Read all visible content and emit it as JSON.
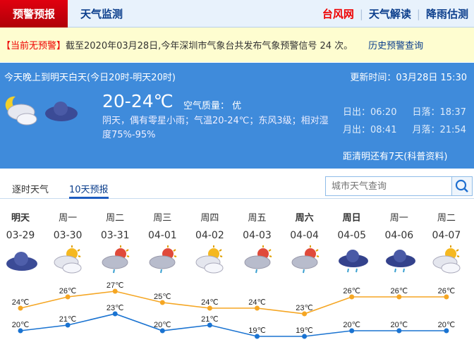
{
  "nav": {
    "active_tab": "预警预报",
    "tab2": "天气监测",
    "links": [
      "台风网",
      "天气解读",
      "降雨估测"
    ]
  },
  "warning": {
    "tag": "【当前无预警】",
    "text": "截至2020年03月28日,今年深圳市气象台共发布气象预警信号 24 次。",
    "history_link": "历史预警查询"
  },
  "today": {
    "period": "今天晚上到明天白天(今日20时-明天20时)",
    "update": "更新时间：03月28日 15:30",
    "temp": "20-24℃",
    "air_quality": "空气质量： 优",
    "desc": "阴天，偶有零星小雨；气温20-24℃；东风3级；相对湿度75%-95%",
    "sunrise": "日出：06:20",
    "sunset": "日落：18:37",
    "moonrise": "月出：08:41",
    "moonset": "月落：21:54",
    "qingming": "距清明还有7天(科普资料)",
    "icons": [
      "night-cloudy",
      "overcast"
    ]
  },
  "tabs": {
    "hourly": "逐时天气",
    "ten_day": "10天预报"
  },
  "search": {
    "placeholder": "城市天气查询"
  },
  "colors": {
    "high": "#f5a623",
    "low": "#1a73d1",
    "accent": "#3f8bdb",
    "alert": "#e00000"
  },
  "forecast": [
    {
      "day": "明天",
      "bold": true,
      "date": "03-29",
      "icon": "overcast",
      "high": 24,
      "low": 20
    },
    {
      "day": "周一",
      "bold": false,
      "date": "03-30",
      "icon": "partly-cloudy",
      "high": 26,
      "low": 21
    },
    {
      "day": "周二",
      "bold": false,
      "date": "03-31",
      "icon": "showers",
      "high": 27,
      "low": 23
    },
    {
      "day": "周三",
      "bold": false,
      "date": "04-01",
      "icon": "showers",
      "high": 25,
      "low": 20
    },
    {
      "day": "周四",
      "bold": false,
      "date": "04-02",
      "icon": "partly-cloudy",
      "high": 24,
      "low": 21
    },
    {
      "day": "周五",
      "bold": false,
      "date": "04-03",
      "icon": "showers",
      "high": 24,
      "low": 19
    },
    {
      "day": "周六",
      "bold": true,
      "date": "04-04",
      "icon": "showers",
      "high": 23,
      "low": 19
    },
    {
      "day": "周日",
      "bold": true,
      "date": "04-05",
      "icon": "rain",
      "high": 26,
      "low": 20
    },
    {
      "day": "周一",
      "bold": false,
      "date": "04-06",
      "icon": "rain",
      "high": 26,
      "low": 20
    },
    {
      "day": "周二",
      "bold": false,
      "date": "04-07",
      "icon": "partly-cloudy",
      "high": 26,
      "low": 20
    }
  ],
  "unit": "℃"
}
